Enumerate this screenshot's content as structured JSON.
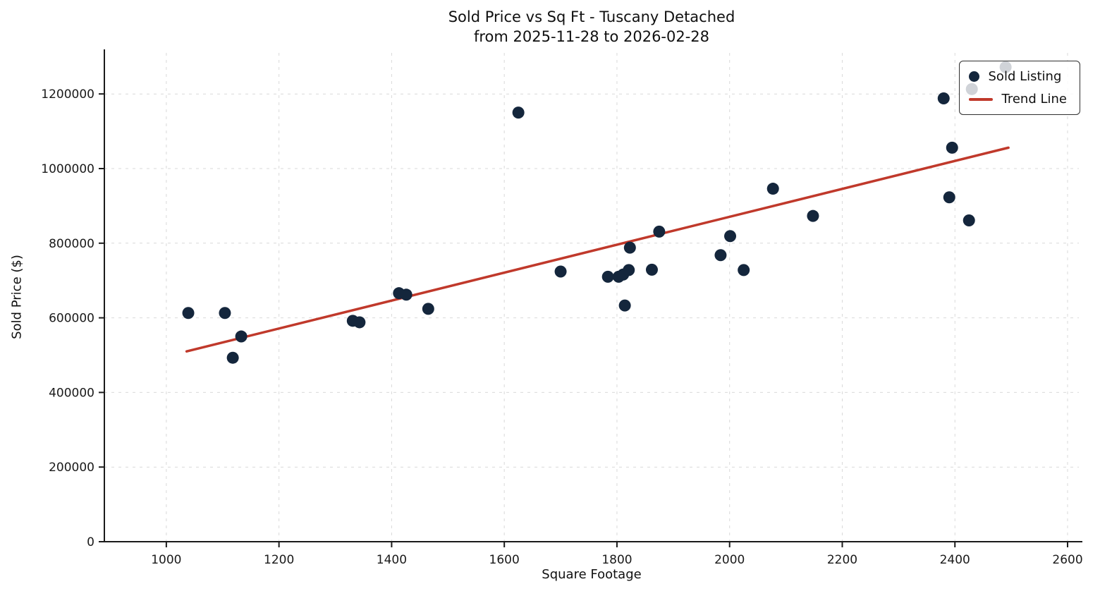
{
  "chart_data": {
    "type": "scatter",
    "title": "Sold Price vs Sq Ft - Tuscany Detached",
    "subtitle": "from 2025-11-28 to 2026-02-28",
    "xlabel": "Square Footage",
    "ylabel": "Sold Price ($)",
    "xlim": [
      890,
      2620
    ],
    "ylim": [
      0,
      1310000
    ],
    "xticks": [
      1000,
      1200,
      1400,
      1600,
      1800,
      2000,
      2200,
      2400,
      2600
    ],
    "yticks": [
      0,
      200000,
      400000,
      600000,
      800000,
      1000000,
      1200000
    ],
    "grid": true,
    "legend_position": "upper right",
    "colors": {
      "grid": "#d9d9d9",
      "axis": "#1a1a1a",
      "background": "#ffffff"
    },
    "series": [
      {
        "name": "Sold Listing",
        "type": "scatter",
        "color": "#14263c",
        "points": [
          [
            1039,
            613000
          ],
          [
            1104,
            613000
          ],
          [
            1118,
            493000
          ],
          [
            1133,
            550000
          ],
          [
            1331,
            592000
          ],
          [
            1343,
            588000
          ],
          [
            1413,
            666000
          ],
          [
            1426,
            662000
          ],
          [
            1465,
            624000
          ],
          [
            1625,
            1150000
          ],
          [
            1700,
            724000
          ],
          [
            1784,
            710000
          ],
          [
            1803,
            710000
          ],
          [
            1811,
            716000
          ],
          [
            1821,
            728000
          ],
          [
            1814,
            633000
          ],
          [
            1823,
            788000
          ],
          [
            1862,
            729000
          ],
          [
            1875,
            831000
          ],
          [
            1984,
            768000
          ],
          [
            2001,
            819000
          ],
          [
            2025,
            728000
          ],
          [
            2077,
            946000
          ],
          [
            2148,
            873000
          ],
          [
            2380,
            1188000
          ],
          [
            2390,
            923000
          ],
          [
            2395,
            1056000
          ],
          [
            2425,
            861000
          ],
          [
            2430,
            1213000
          ],
          [
            2490,
            1272000
          ]
        ]
      },
      {
        "name": "Trend Line",
        "type": "line",
        "color": "#c0392b",
        "points": [
          [
            1036,
            510000
          ],
          [
            2495,
            1056000
          ]
        ]
      }
    ]
  }
}
